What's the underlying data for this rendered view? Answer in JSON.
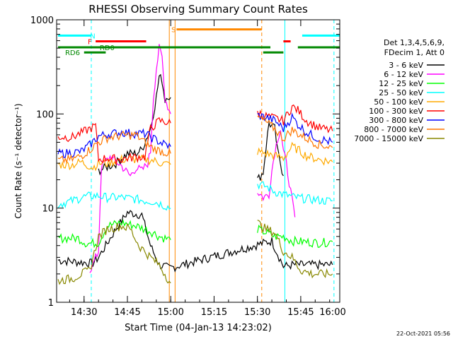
{
  "chart_data": {
    "type": "line",
    "title": "RHESSI Observing Summary Count Rates",
    "xlabel": "Start Time (04-Jan-13 14:23:02)",
    "ylabel": "Count Rate (s⁻¹ detector⁻¹)",
    "yscale": "log",
    "ylim": [
      1,
      1000
    ],
    "xlim_minutes": [
      -2.5,
      95.5
    ],
    "x_ticks": [
      {
        "label": "14:30",
        "minute": 7
      },
      {
        "label": "14:45",
        "minute": 22
      },
      {
        "label": "15:00",
        "minute": 37
      },
      {
        "label": "15:15",
        "minute": 52
      },
      {
        "label": "15:30",
        "minute": 67
      },
      {
        "label": "15:45",
        "minute": 82
      },
      {
        "label": "16:00",
        "minute": 97
      }
    ],
    "y_ticks": [
      {
        "label": "1",
        "value": 1
      },
      {
        "label": "10",
        "value": 10
      },
      {
        "label": "100",
        "value": 100
      },
      {
        "label": "1000",
        "value": 1000
      }
    ],
    "legend_title": [
      "Det 1,3,4,5,6,9,",
      "FDecim 1, Att 0"
    ],
    "legend_position": "right",
    "date_stamp": "22-Oct-2021 05:56",
    "series": [
      {
        "name": "3 - 6 keV",
        "color": "#000000",
        "points": [
          [
            -2,
            2.8
          ],
          [
            10,
            2.6
          ],
          [
            12,
            3
          ],
          [
            18,
            6
          ],
          [
            22,
            9
          ],
          [
            27,
            8.5
          ],
          [
            30,
            4
          ],
          [
            33,
            2.5
          ],
          [
            35,
            2.4
          ],
          [
            36.5,
            2.3
          ],
          [
            72,
            4.5
          ],
          [
            76,
            2.4
          ],
          [
            79,
            2.5
          ],
          [
            82,
            2.5
          ],
          [
            86,
            2.5
          ],
          [
            90,
            2.5
          ],
          [
            93,
            2.5
          ]
        ],
        "segments2": [
          [
            [
              12,
              25
            ],
            [
              18,
              30
            ],
            [
              22,
              38
            ],
            [
              25,
              38
            ],
            [
              27,
              42
            ],
            [
              30,
              70
            ],
            [
              32,
              150
            ],
            [
              33,
              250
            ],
            [
              34,
              230
            ],
            [
              35,
              140
            ],
            [
              36,
              160
            ],
            [
              37,
              150
            ]
          ],
          [
            [
              67,
              20
            ],
            [
              69,
              24
            ],
            [
              70,
              45
            ],
            [
              71,
              80
            ],
            [
              73,
              70
            ],
            [
              74,
              40
            ],
            [
              76,
              22
            ]
          ]
        ]
      },
      {
        "name": "6 - 12 keV",
        "color": "#ff00ff",
        "points": [
          [
            9,
            2.2
          ],
          [
            10,
            2.5
          ],
          [
            12,
            3.5
          ],
          [
            13,
            28
          ],
          [
            16,
            35
          ],
          [
            20,
            28
          ],
          [
            23,
            22
          ],
          [
            25,
            27
          ],
          [
            27,
            25
          ],
          [
            29,
            30
          ],
          [
            30,
            40
          ],
          [
            31,
            150
          ],
          [
            32,
            300
          ],
          [
            33,
            500
          ],
          [
            34,
            400
          ],
          [
            35,
            150
          ],
          [
            36,
            120
          ],
          [
            37,
            100
          ]
        ],
        "segments2": [
          [
            [
              67,
              15
            ],
            [
              69,
              13
            ],
            [
              71,
              14
            ],
            [
              72,
              25
            ],
            [
              73,
              40
            ],
            [
              74,
              55
            ],
            [
              75,
              70
            ],
            [
              76,
              40
            ],
            [
              77,
              30
            ],
            [
              79,
              12
            ],
            [
              80,
              8
            ]
          ]
        ]
      },
      {
        "name": "12 - 25 keV",
        "color": "#00ff00",
        "points": [
          [
            -2,
            4.8
          ],
          [
            5,
            4.8
          ],
          [
            8,
            4.2
          ],
          [
            12,
            4.3
          ],
          [
            15,
            6.5
          ],
          [
            20,
            7
          ],
          [
            25,
            6.5
          ],
          [
            28,
            6
          ],
          [
            31,
            5.5
          ],
          [
            33,
            5
          ],
          [
            35,
            4.8
          ],
          [
            37,
            4.6
          ]
        ],
        "segments2": [
          [
            [
              67,
              6
            ],
            [
              70,
              5.5
            ],
            [
              73,
              5
            ],
            [
              76,
              5
            ],
            [
              79,
              4.5
            ],
            [
              83,
              4.4
            ],
            [
              88,
              4.3
            ],
            [
              93,
              4.4
            ]
          ]
        ]
      },
      {
        "name": "25 - 50 keV",
        "color": "#00ffff",
        "points": [
          [
            -2,
            11
          ],
          [
            3,
            12
          ],
          [
            6,
            13
          ],
          [
            9,
            13.5
          ],
          [
            12,
            13.5
          ],
          [
            15,
            13
          ],
          [
            20,
            13
          ],
          [
            25,
            12.5
          ],
          [
            28,
            12
          ],
          [
            31,
            11.8
          ],
          [
            34,
            11
          ],
          [
            37,
            10
          ]
        ],
        "segments2": [
          [
            [
              67,
              18
            ],
            [
              70,
              17
            ],
            [
              73,
              15
            ],
            [
              76,
              14
            ],
            [
              80,
              13
            ],
            [
              85,
              12.5
            ],
            [
              90,
              12
            ],
            [
              93,
              12
            ]
          ]
        ]
      },
      {
        "name": "50 - 100 keV",
        "color": "#ffaa00",
        "points": [
          [
            -2,
            29
          ],
          [
            3,
            29
          ],
          [
            6,
            31
          ],
          [
            10,
            27
          ],
          [
            12,
            30
          ],
          [
            15,
            30
          ],
          [
            20,
            33
          ],
          [
            25,
            33
          ],
          [
            28,
            33
          ],
          [
            31,
            32
          ],
          [
            34,
            30
          ],
          [
            37,
            29
          ]
        ],
        "segments2": [
          [
            [
              67,
              40
            ],
            [
              70,
              38
            ],
            [
              73,
              36
            ],
            [
              76,
              34
            ],
            [
              79,
              45
            ],
            [
              81,
              42
            ],
            [
              84,
              36
            ],
            [
              88,
              33
            ],
            [
              93,
              31
            ]
          ]
        ]
      },
      {
        "name": "100 - 300 keV",
        "color": "#ff0000",
        "points": [
          [
            -2,
            57
          ],
          [
            3,
            57
          ],
          [
            6,
            63
          ],
          [
            9,
            70
          ],
          [
            11,
            75
          ],
          [
            12,
            33
          ],
          [
            15,
            34
          ],
          [
            20,
            33
          ],
          [
            22,
            34
          ],
          [
            25,
            35
          ],
          [
            28,
            35
          ],
          [
            30,
            70
          ],
          [
            33,
            85
          ],
          [
            37,
            80
          ]
        ],
        "segments2": [
          [
            [
              67,
              105
            ],
            [
              70,
              95
            ],
            [
              73,
              90
            ],
            [
              76,
              85
            ],
            [
              79,
              120
            ],
            [
              81,
              110
            ],
            [
              84,
              85
            ],
            [
              88,
              72
            ],
            [
              93,
              66
            ]
          ]
        ]
      },
      {
        "name": "300 - 800 keV",
        "color": "#0000ff",
        "points": [
          [
            -2,
            38
          ],
          [
            3,
            39
          ],
          [
            6,
            40
          ],
          [
            9,
            47
          ],
          [
            12,
            58
          ],
          [
            15,
            61
          ],
          [
            20,
            64
          ],
          [
            23,
            63
          ],
          [
            25,
            62
          ],
          [
            28,
            62
          ],
          [
            31,
            55
          ],
          [
            34,
            49
          ],
          [
            37,
            45
          ]
        ],
        "segments2": [
          [
            [
              67,
              97
            ],
            [
              70,
              92
            ],
            [
              73,
              85
            ],
            [
              76,
              70
            ],
            [
              79,
              93
            ],
            [
              81,
              78
            ],
            [
              84,
              64
            ],
            [
              88,
              55
            ],
            [
              93,
              50
            ]
          ]
        ]
      },
      {
        "name": "800 - 7000 keV",
        "color": "#ff7700",
        "points": [
          [
            -2,
            32
          ],
          [
            3,
            33
          ],
          [
            6,
            36
          ],
          [
            9,
            42
          ],
          [
            12,
            50
          ],
          [
            15,
            56
          ],
          [
            20,
            59
          ],
          [
            25,
            60
          ],
          [
            28,
            50
          ],
          [
            31,
            43
          ],
          [
            34,
            40
          ],
          [
            37,
            38
          ]
        ],
        "segments2": [
          [
            [
              67,
              92
            ],
            [
              70,
              82
            ],
            [
              73,
              70
            ],
            [
              76,
              55
            ],
            [
              79,
              68
            ],
            [
              81,
              62
            ],
            [
              84,
              55
            ],
            [
              88,
              48
            ],
            [
              93,
              44
            ]
          ]
        ]
      },
      {
        "name": "7000 - 15000 keV",
        "color": "#888800",
        "points": [
          [
            -2,
            1.7
          ],
          [
            3,
            1.8
          ],
          [
            6,
            2
          ],
          [
            9,
            2.2
          ],
          [
            12,
            5
          ],
          [
            15,
            6
          ],
          [
            20,
            6.5
          ],
          [
            23,
            6
          ],
          [
            26,
            4
          ],
          [
            28,
            3.5
          ],
          [
            30,
            3
          ],
          [
            33,
            2.5
          ],
          [
            35,
            2
          ],
          [
            37,
            1.6
          ]
        ],
        "segments2": [
          [
            [
              67,
              7
            ],
            [
              70,
              6
            ],
            [
              73,
              5.5
            ],
            [
              76,
              3.5
            ],
            [
              79,
              3
            ],
            [
              82,
              2.2
            ],
            [
              86,
              2
            ],
            [
              90,
              2
            ],
            [
              93,
              2
            ]
          ]
        ]
      }
    ],
    "state_bars": [
      {
        "label": "N",
        "color": "#00ffff",
        "value": 680,
        "ranges": [
          [
            -2,
            9.5
          ],
          [
            82.5,
            95.5
          ]
        ],
        "label_minute": 10
      },
      {
        "label": "F",
        "color": "#ff0000",
        "value": 590,
        "ranges": [
          [
            11,
            28.5
          ],
          [
            76,
            78.5
          ]
        ],
        "label_minute": 9
      },
      {
        "label": "S",
        "color": "#ff8800",
        "value": 790,
        "ranges": [
          [
            39,
            68.5
          ]
        ],
        "label_minute": 38
      },
      {
        "label": "RD0",
        "color": "#008800",
        "value": 510,
        "ranges": [
          [
            -2,
            71.5
          ],
          [
            81,
            95.5
          ]
        ],
        "label_minute": 15
      },
      {
        "label": "RD6",
        "color": "#008800",
        "value": 450,
        "ranges": [
          [
            7,
            14.5
          ],
          [
            69,
            76
          ]
        ],
        "label_minute": 3
      }
    ],
    "markers": [
      {
        "minute": 9.5,
        "color": "#00ffff",
        "style": "dashed"
      },
      {
        "minute": 36.5,
        "color": "#ff8800",
        "style": "solid"
      },
      {
        "minute": 38.5,
        "color": "#ff8800",
        "style": "solid"
      },
      {
        "minute": 68.5,
        "color": "#ff8800",
        "style": "dashed"
      },
      {
        "minute": 76.5,
        "color": "#00ffff",
        "style": "solid"
      },
      {
        "minute": 93.5,
        "color": "#00ffff",
        "style": "dashed"
      }
    ]
  }
}
